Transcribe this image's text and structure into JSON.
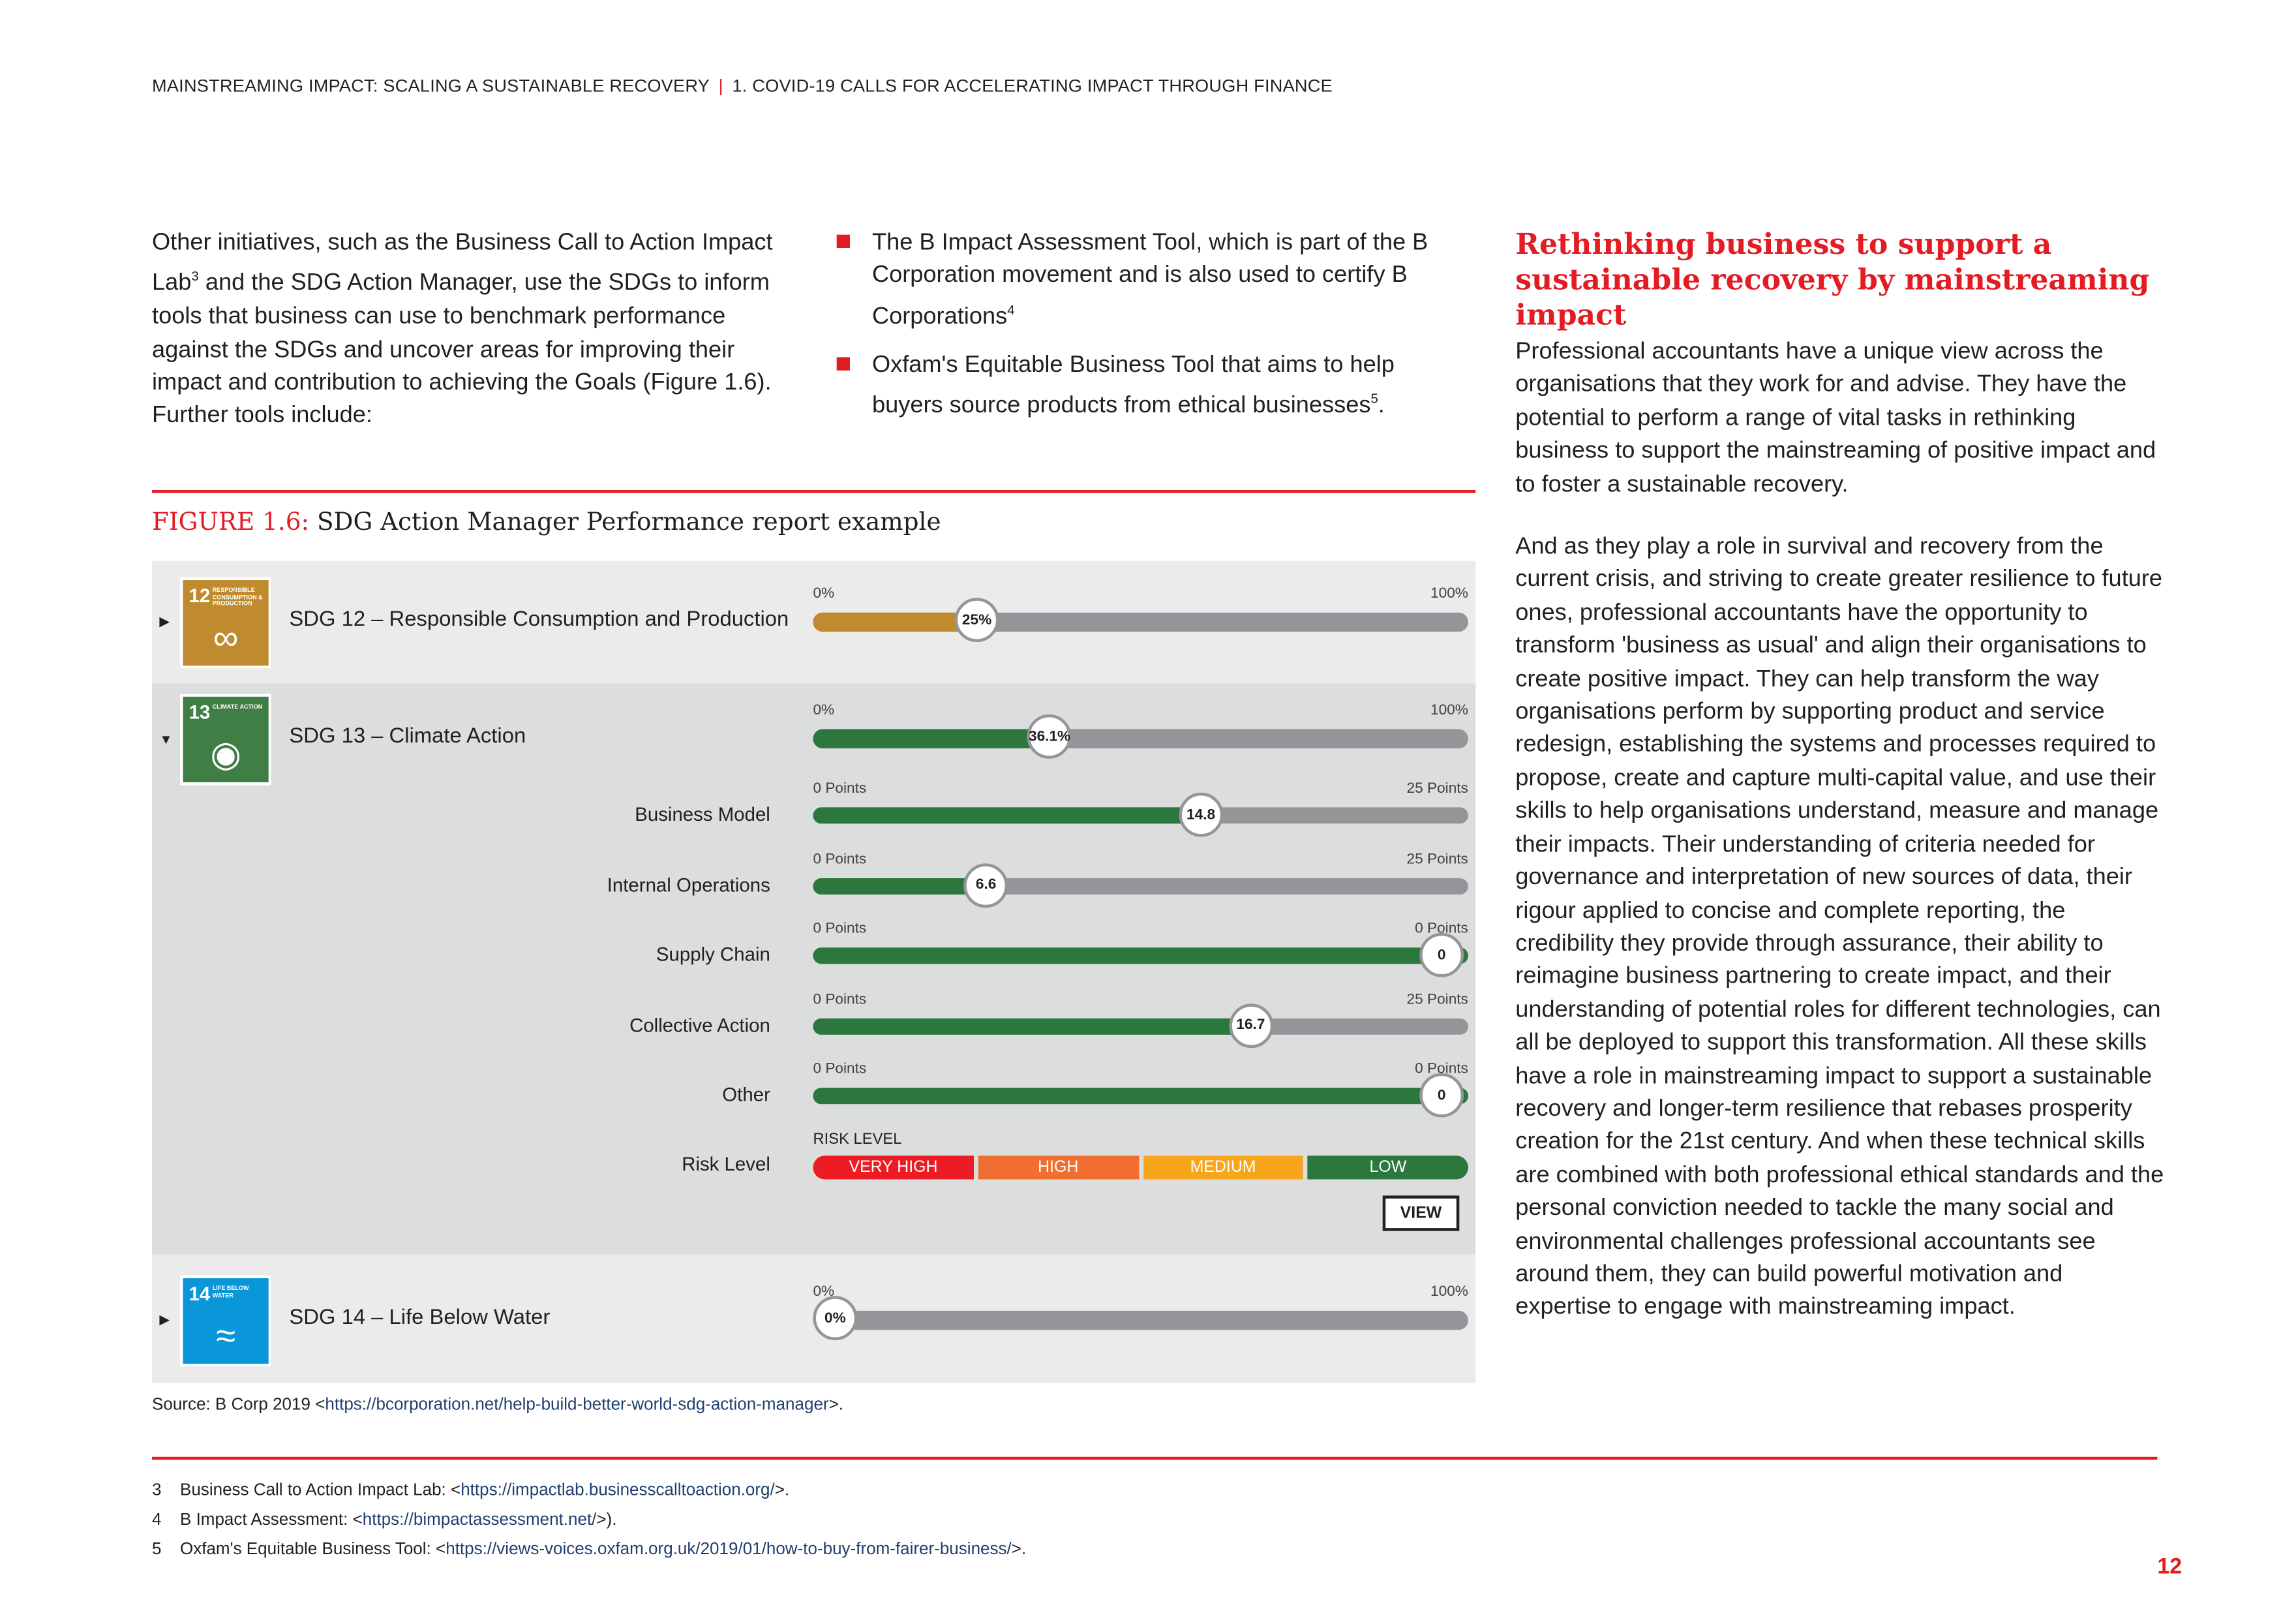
{
  "header": {
    "left": "MAINSTREAMING IMPACT: SCALING A SUSTAINABLE RECOVERY",
    "separator": "|",
    "right": "1. COVID-19 CALLS FOR ACCELERATING IMPACT THROUGH FINANCE"
  },
  "left_col": {
    "p1": "Other initiatives, such as the Business Call to Action Impact Lab",
    "sup1": "3",
    "p2": " and the SDG Action Manager, use the SDGs to inform tools that business can use to benchmark performance against the SDGs and uncover areas for improving their impact and contribution to achieving the Goals (Figure 1.6). Further tools include:"
  },
  "bullets": [
    {
      "text": "The B Impact Assessment Tool, which is part of the B Corporation movement and is also used to certify B Corporations",
      "sup": "4"
    },
    {
      "text": "Oxfam's Equitable Business Tool that aims to help buyers source products from ethical businesses",
      "sup": "5",
      "end": "."
    }
  ],
  "right_col": {
    "heading": "Rethinking business to support a sustainable recovery by mainstreaming impact",
    "p1": "Professional accountants have a unique view across the organisations that they work for and advise. They have the potential to perform a range of vital tasks in rethinking business to support the mainstreaming of positive impact and to foster a sustainable recovery.",
    "p2": "And as they play a role in survival and recovery from the current crisis, and striving to create greater resilience to future ones, professional accountants have the opportunity to transform 'business as usual' and align their organisations to create positive impact. They can help transform the way organisations perform by supporting product and service redesign, establishing the systems and processes required to propose, create and capture multi-capital value, and use their skills to help organisations understand, measure and manage their impacts. Their understanding of criteria needed for governance and interpretation of new sources of data, their rigour applied to concise and complete reporting, the credibility they provide through assurance, their ability to reimagine business partnering to create impact, and their understanding of potential roles for different technologies, can all be deployed to support this transformation. All these skills have a role in mainstreaming impact to support a sustainable recovery and longer-term resilience that rebases prosperity creation for the 21st century. And when these technical skills are combined with both professional ethical standards and the personal conviction needed to tackle the many social and environmental challenges professional accountants see around them, they can build powerful motivation and expertise to engage with mainstreaming impact."
  },
  "figure": {
    "label": "FIGURE 1.6:",
    "title": " SDG Action Manager Performance report example",
    "sdg12": {
      "num": "12",
      "icon_text": "RESPONSIBLE CONSUMPTION & PRODUCTION",
      "name": "SDG 12 – Responsible Consumption and Production",
      "min": "0%",
      "max": "100%",
      "value_label": "25%",
      "fraction": 0.25,
      "color": "#bf8b2e"
    },
    "sdg13": {
      "num": "13",
      "icon_text": "CLIMATE ACTION",
      "name": "SDG 13 – Climate Action",
      "min": "0%",
      "max": "100%",
      "value_label": "36.1%",
      "fraction": 0.361,
      "color": "#3f7e44",
      "subs": [
        {
          "label": "Business Model",
          "min": "0 Points",
          "max": "25 Points",
          "value_label": "14.8",
          "fraction": 0.592
        },
        {
          "label": "Internal Operations",
          "min": "0 Points",
          "max": "25 Points",
          "value_label": "6.6",
          "fraction": 0.264
        },
        {
          "label": "Supply Chain",
          "min": "0 Points",
          "max": "0 Points",
          "value_label": "0",
          "fraction": 1
        },
        {
          "label": "Collective Action",
          "min": "0 Points",
          "max": "25 Points",
          "value_label": "16.7",
          "fraction": 0.668
        },
        {
          "label": "Other",
          "min": "0 Points",
          "max": "0 Points",
          "value_label": "0",
          "fraction": 1
        }
      ],
      "risk_row_label": "Risk Level",
      "risk_title": "RISK LEVEL",
      "risk": [
        {
          "label": "VERY HIGH",
          "color": "#ed1c24"
        },
        {
          "label": "HIGH",
          "color": "#f16e31"
        },
        {
          "label": "MEDIUM",
          "color": "#f7a51b"
        },
        {
          "label": "LOW",
          "color": "#2b773d"
        }
      ],
      "view": "VIEW"
    },
    "sdg14": {
      "num": "14",
      "icon_text": "LIFE BELOW WATER",
      "name": "SDG 14 – Life Below Water",
      "min": "0%",
      "max": "100%",
      "value_label": "0%",
      "fraction": 0,
      "color": "#0a97d9"
    }
  },
  "source": {
    "text": "Source: B Corp 2019 <",
    "link": "https://bcorporation.net/help-build-better-world-sdg-action-manager",
    "end": ">."
  },
  "footnotes": [
    {
      "n": "3",
      "text": "Business Call to Action Impact Lab: <",
      "link": "https://impactlab.businesscalltoaction.org/",
      "end": ">."
    },
    {
      "n": "4",
      "text": "B Impact Assessment: <",
      "link": "https://bimpactassessment.net/",
      "end": ">)."
    },
    {
      "n": "5",
      "text": "Oxfam's Equitable Business Tool: <",
      "link": "https://views-voices.oxfam.org.uk/2019/01/how-to-buy-from-fairer-business/",
      "end": ">."
    }
  ],
  "page_number": "12"
}
